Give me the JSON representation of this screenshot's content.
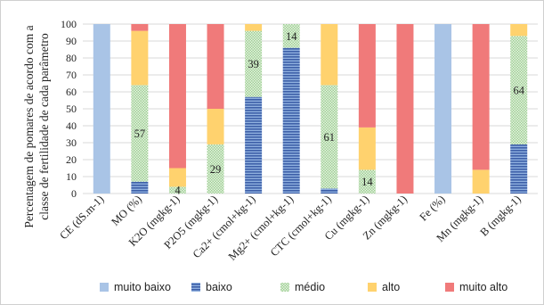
{
  "chart_data": {
    "type": "bar",
    "stacked": true,
    "ylabel_lines": [
      "Percentagem de pomares de acordo com a",
      "classe de fertilidade de cada parâmetro"
    ],
    "ylim": [
      0,
      100
    ],
    "yticks": [
      0,
      10,
      20,
      30,
      40,
      50,
      60,
      70,
      80,
      90,
      100
    ],
    "grid": true,
    "legend_position": "bottom",
    "categories": [
      "CE (dS.m-1)",
      "MO (%)",
      "K2O (mgkg-1)",
      "P2O5 (mgkg-1)",
      "Ca2+ (cmol+kg-1)",
      "Mg2+ (cmol+kg-1)",
      "CTC (cmol+kg-1)",
      "Cu (mgkg-1)",
      "Zn (mgkg-1)",
      "Fe (%)",
      "Mn (mgkg-1)",
      "B (mgkg-1)"
    ],
    "series": [
      {
        "name": "muito baixo",
        "color": "#a9c4e6",
        "values": [
          100,
          0,
          0,
          0,
          0,
          0,
          0,
          0,
          0,
          100,
          0,
          0
        ]
      },
      {
        "name": "baixo",
        "color": "#4a6fb5",
        "values": [
          0,
          7,
          0,
          0,
          57,
          86,
          3,
          0,
          0,
          0,
          0,
          29
        ]
      },
      {
        "name": "médio",
        "color": "#b8ddb0",
        "values": [
          0,
          57,
          4,
          29,
          39,
          14,
          61,
          14,
          0,
          0,
          0,
          64
        ]
      },
      {
        "name": "alto",
        "color": "#ffd26e",
        "values": [
          0,
          32,
          11,
          21,
          4,
          0,
          36,
          25,
          0,
          0,
          14,
          7
        ]
      },
      {
        "name": "muito alto",
        "color": "#f07a7a",
        "values": [
          0,
          4,
          85,
          50,
          0,
          0,
          0,
          61,
          100,
          0,
          86,
          0
        ]
      }
    ],
    "data_labels": [
      {
        "category_index": 1,
        "series_index": 2,
        "text": "57"
      },
      {
        "category_index": 2,
        "series_index": 2,
        "text": "4"
      },
      {
        "category_index": 3,
        "series_index": 2,
        "text": "29"
      },
      {
        "category_index": 4,
        "series_index": 2,
        "text": "39"
      },
      {
        "category_index": 5,
        "series_index": 2,
        "text": "14"
      },
      {
        "category_index": 6,
        "series_index": 2,
        "text": "61"
      },
      {
        "category_index": 7,
        "series_index": 2,
        "text": "14"
      },
      {
        "category_index": 11,
        "series_index": 2,
        "text": "64"
      }
    ]
  }
}
